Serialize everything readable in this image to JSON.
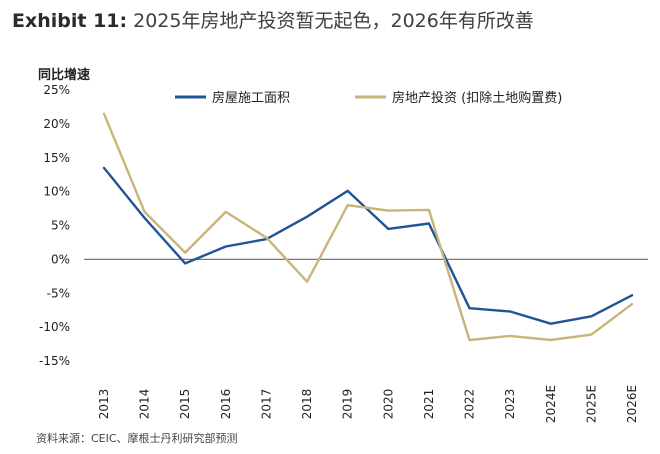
{
  "title": {
    "prefix": "Exhibit 11:",
    "text": "2025年房地产投资暂无起色，2026年有所改善"
  },
  "source": "资料来源：CEIC、摩根士丹利研究部预测",
  "colors": {
    "series_blue": "#1f5597",
    "series_gold": "#c9b47a",
    "zero_line": "#777777",
    "text": "#222222"
  },
  "chart_data": {
    "type": "line",
    "ylabel": "同比增速",
    "xlabel": "",
    "categories": [
      "2013",
      "2014",
      "2015",
      "2016",
      "2017",
      "2018",
      "2019",
      "2020",
      "2021",
      "2022",
      "2023",
      "2024E",
      "2025E",
      "2026E"
    ],
    "yticks": [
      "25%",
      "20%",
      "15%",
      "10%",
      "5%",
      "0%",
      "-5%",
      "-10%",
      "-15%"
    ],
    "ylim": [
      -15,
      25
    ],
    "grid": false,
    "legend_position": "top",
    "series": [
      {
        "name": "房屋施工面积",
        "color": "#1f5597",
        "values": [
          13.5,
          6.1,
          -0.6,
          1.9,
          3.0,
          6.3,
          10.1,
          4.5,
          5.3,
          -7.2,
          -7.7,
          -9.5,
          -8.4,
          -5.3
        ]
      },
      {
        "name": "房地产投资 (扣除土地购置费)",
        "color": "#c9b47a",
        "values": [
          21.5,
          7.0,
          1.0,
          7.0,
          3.2,
          -3.3,
          8.0,
          7.2,
          7.3,
          -11.9,
          -11.3,
          -11.9,
          -11.1,
          -6.6
        ]
      }
    ]
  }
}
